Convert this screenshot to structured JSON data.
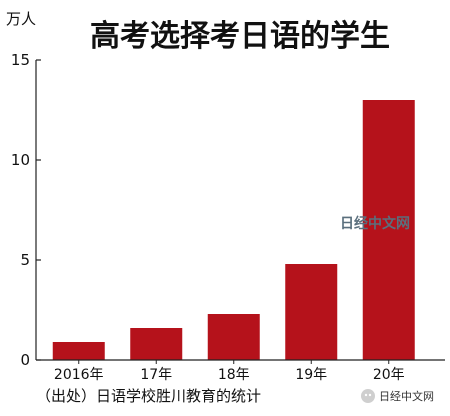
{
  "chart_data": {
    "type": "bar",
    "title": "高考选择考日语的学生",
    "unit_label": "万人",
    "categories": [
      "2016年",
      "17年",
      "18年",
      "19年",
      "20年"
    ],
    "values": [
      0.9,
      1.6,
      2.3,
      4.8,
      13.0
    ],
    "ylim": [
      0,
      15
    ],
    "yticks": [
      0,
      5,
      10,
      15
    ],
    "bar_color": "#b5121b",
    "grid": false,
    "source_note": "（出处）日语学校胜川教育的统计"
  },
  "watermark": {
    "center_text": "日经中文网",
    "bottom_text": "日经中文网"
  }
}
